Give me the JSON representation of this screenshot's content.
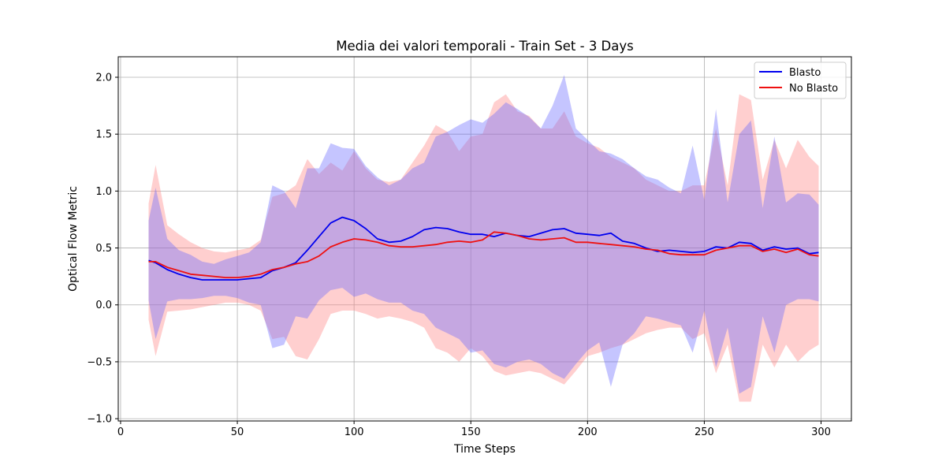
{
  "chart_data": {
    "type": "line",
    "title": "Media dei valori temporali - Train Set - 3 Days",
    "xlabel": "Time Steps",
    "ylabel": "Optical Flow Metric",
    "xlim": [
      -1,
      313
    ],
    "ylim": [
      -1.02,
      2.18
    ],
    "x_ticks": [
      0,
      50,
      100,
      150,
      200,
      250,
      300
    ],
    "y_ticks": [
      -1.0,
      -0.5,
      0.0,
      0.5,
      1.0,
      1.5,
      2.0
    ],
    "x_tick_labels": [
      "0",
      "50",
      "100",
      "150",
      "200",
      "250",
      "300"
    ],
    "y_tick_labels": [
      "−1.0",
      "−0.5",
      "0.0",
      "0.5",
      "1.0",
      "1.5",
      "2.0"
    ],
    "grid": true,
    "legend": {
      "position": "top-right",
      "entries": [
        "Blasto",
        "No Blasto"
      ]
    },
    "colors": {
      "blasto": "#0000ee",
      "no_blasto": "#ee1111",
      "blasto_band": "#6666ff",
      "no_blasto_band": "#ff8080"
    },
    "series": [
      {
        "name": "Blasto",
        "x": [
          12,
          15,
          20,
          25,
          30,
          35,
          40,
          45,
          50,
          55,
          60,
          65,
          70,
          75,
          80,
          85,
          90,
          95,
          100,
          105,
          110,
          115,
          120,
          125,
          130,
          135,
          140,
          145,
          150,
          155,
          160,
          165,
          170,
          175,
          180,
          185,
          190,
          195,
          200,
          205,
          210,
          215,
          220,
          225,
          230,
          235,
          240,
          245,
          250,
          255,
          260,
          265,
          270,
          275,
          280,
          285,
          290,
          295,
          299
        ],
        "mean": [
          0.39,
          0.37,
          0.31,
          0.27,
          0.24,
          0.22,
          0.22,
          0.22,
          0.22,
          0.23,
          0.24,
          0.3,
          0.33,
          0.37,
          0.48,
          0.6,
          0.72,
          0.77,
          0.74,
          0.67,
          0.58,
          0.55,
          0.56,
          0.6,
          0.66,
          0.68,
          0.67,
          0.64,
          0.62,
          0.62,
          0.6,
          0.63,
          0.61,
          0.6,
          0.63,
          0.66,
          0.67,
          0.63,
          0.62,
          0.61,
          0.63,
          0.56,
          0.54,
          0.5,
          0.47,
          0.48,
          0.47,
          0.46,
          0.47,
          0.51,
          0.5,
          0.55,
          0.54,
          0.48,
          0.51,
          0.49,
          0.5,
          0.45,
          0.46
        ],
        "upper": [
          0.74,
          1.03,
          0.58,
          0.48,
          0.44,
          0.38,
          0.36,
          0.4,
          0.43,
          0.46,
          0.55,
          1.05,
          1.0,
          0.85,
          1.2,
          1.2,
          1.42,
          1.38,
          1.37,
          1.22,
          1.12,
          1.05,
          1.1,
          1.2,
          1.25,
          1.48,
          1.52,
          1.58,
          1.63,
          1.6,
          1.68,
          1.78,
          1.72,
          1.65,
          1.55,
          1.75,
          2.02,
          1.55,
          1.45,
          1.35,
          1.33,
          1.28,
          1.2,
          1.13,
          1.1,
          1.03,
          0.98,
          1.4,
          0.92,
          1.72,
          0.9,
          1.5,
          1.62,
          0.85,
          1.48,
          0.9,
          0.98,
          0.97,
          0.88
        ],
        "lower": [
          0.04,
          -0.3,
          0.03,
          0.05,
          0.05,
          0.06,
          0.08,
          0.08,
          0.06,
          0.02,
          0.0,
          -0.38,
          -0.35,
          -0.1,
          -0.12,
          0.04,
          0.13,
          0.15,
          0.07,
          0.1,
          0.05,
          0.02,
          0.02,
          -0.05,
          -0.08,
          -0.2,
          -0.25,
          -0.3,
          -0.42,
          -0.4,
          -0.52,
          -0.55,
          -0.5,
          -0.48,
          -0.52,
          -0.6,
          -0.65,
          -0.52,
          -0.4,
          -0.33,
          -0.72,
          -0.35,
          -0.25,
          -0.1,
          -0.12,
          -0.15,
          -0.18,
          -0.42,
          -0.05,
          -0.55,
          -0.2,
          -0.78,
          -0.72,
          -0.1,
          -0.42,
          0.0,
          0.05,
          0.05,
          0.03
        ]
      },
      {
        "name": "No Blasto",
        "x": [
          12,
          15,
          20,
          25,
          30,
          35,
          40,
          45,
          50,
          55,
          60,
          65,
          70,
          75,
          80,
          85,
          90,
          95,
          100,
          105,
          110,
          115,
          120,
          125,
          130,
          135,
          140,
          145,
          150,
          155,
          160,
          165,
          170,
          175,
          180,
          185,
          190,
          195,
          200,
          205,
          210,
          215,
          220,
          225,
          230,
          235,
          240,
          245,
          250,
          255,
          260,
          265,
          270,
          275,
          280,
          285,
          290,
          295,
          299
        ],
        "mean": [
          0.38,
          0.38,
          0.33,
          0.3,
          0.27,
          0.26,
          0.25,
          0.24,
          0.24,
          0.25,
          0.27,
          0.31,
          0.33,
          0.36,
          0.38,
          0.43,
          0.51,
          0.55,
          0.58,
          0.57,
          0.55,
          0.52,
          0.51,
          0.51,
          0.52,
          0.53,
          0.55,
          0.56,
          0.55,
          0.57,
          0.64,
          0.63,
          0.61,
          0.58,
          0.57,
          0.58,
          0.59,
          0.55,
          0.55,
          0.54,
          0.53,
          0.52,
          0.51,
          0.49,
          0.48,
          0.45,
          0.44,
          0.44,
          0.44,
          0.48,
          0.5,
          0.52,
          0.52,
          0.47,
          0.49,
          0.46,
          0.49,
          0.44,
          0.43
        ],
        "upper": [
          0.89,
          1.23,
          0.7,
          0.62,
          0.55,
          0.5,
          0.47,
          0.46,
          0.48,
          0.5,
          0.57,
          0.95,
          0.98,
          1.05,
          1.28,
          1.15,
          1.25,
          1.18,
          1.35,
          1.2,
          1.1,
          1.08,
          1.1,
          1.25,
          1.4,
          1.58,
          1.52,
          1.35,
          1.48,
          1.5,
          1.78,
          1.85,
          1.7,
          1.66,
          1.55,
          1.55,
          1.7,
          1.48,
          1.42,
          1.38,
          1.3,
          1.25,
          1.2,
          1.1,
          1.05,
          1.0,
          1.0,
          1.05,
          1.05,
          1.55,
          1.05,
          1.85,
          1.8,
          1.1,
          1.45,
          1.2,
          1.45,
          1.3,
          1.22
        ],
        "lower": [
          -0.13,
          -0.45,
          -0.06,
          -0.05,
          -0.04,
          -0.02,
          0.0,
          0.02,
          0.02,
          0.0,
          -0.05,
          -0.3,
          -0.28,
          -0.45,
          -0.48,
          -0.3,
          -0.08,
          -0.05,
          -0.05,
          -0.08,
          -0.12,
          -0.1,
          -0.12,
          -0.15,
          -0.2,
          -0.38,
          -0.42,
          -0.5,
          -0.38,
          -0.45,
          -0.58,
          -0.62,
          -0.6,
          -0.58,
          -0.6,
          -0.65,
          -0.7,
          -0.58,
          -0.45,
          -0.42,
          -0.38,
          -0.35,
          -0.3,
          -0.25,
          -0.22,
          -0.2,
          -0.2,
          -0.3,
          -0.25,
          -0.6,
          -0.35,
          -0.85,
          -0.85,
          -0.35,
          -0.55,
          -0.35,
          -0.5,
          -0.4,
          -0.35
        ]
      }
    ]
  }
}
